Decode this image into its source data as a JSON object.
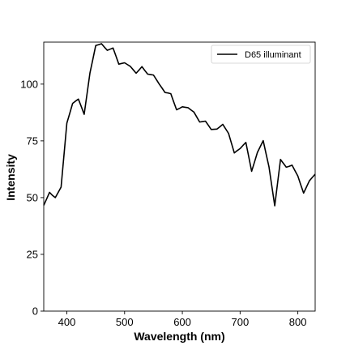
{
  "chart_data": {
    "type": "line",
    "title": "",
    "xlabel": "Wavelength (nm)",
    "ylabel": "Intensity",
    "xlim": [
      360,
      830
    ],
    "ylim": [
      0,
      118.5
    ],
    "xticks": [
      400,
      500,
      600,
      700,
      800
    ],
    "yticks": [
      0,
      25,
      50,
      75,
      100
    ],
    "grid": false,
    "legend_position": "top-right",
    "series": [
      {
        "name": "D65 illuminant",
        "color": "#000000",
        "x": [
          360,
          365,
          370,
          375,
          380,
          385,
          390,
          395,
          400,
          405,
          410,
          415,
          420,
          425,
          430,
          435,
          440,
          445,
          450,
          455,
          460,
          465,
          470,
          475,
          480,
          485,
          490,
          495,
          500,
          505,
          510,
          515,
          520,
          525,
          530,
          535,
          540,
          545,
          550,
          555,
          560,
          565,
          570,
          575,
          580,
          585,
          590,
          595,
          600,
          605,
          610,
          615,
          620,
          625,
          630,
          635,
          640,
          645,
          650,
          655,
          660,
          665,
          670,
          675,
          680,
          685,
          690,
          695,
          700,
          705,
          710,
          715,
          720,
          725,
          730,
          735,
          740,
          745,
          750,
          755,
          760,
          765,
          770,
          775,
          780,
          785,
          790,
          795,
          800,
          805,
          810,
          815,
          820,
          825,
          830
        ],
        "y": [
          46.6,
          49.4,
          52.3,
          51.0,
          50.0,
          52.3,
          54.6,
          68.7,
          82.8,
          87.1,
          91.5,
          92.5,
          93.4,
          90.1,
          86.7,
          95.8,
          104.9,
          110.9,
          117.0,
          117.4,
          117.8,
          116.3,
          114.9,
          115.4,
          115.9,
          112.4,
          108.8,
          109.1,
          109.4,
          108.6,
          107.8,
          106.3,
          104.8,
          106.2,
          107.7,
          106.0,
          104.4,
          104.2,
          104.0,
          102.0,
          100.0,
          98.2,
          96.3,
          96.1,
          95.8,
          92.2,
          88.7,
          89.3,
          90.0,
          89.8,
          89.6,
          88.6,
          87.7,
          85.5,
          83.3,
          83.5,
          83.7,
          81.9,
          80.0,
          80.1,
          80.2,
          81.2,
          82.3,
          80.3,
          78.3,
          74.0,
          69.7,
          70.7,
          71.6,
          73.0,
          74.3,
          68.0,
          61.6,
          65.7,
          69.9,
          72.5,
          75.1,
          69.3,
          63.6,
          55.0,
          46.4,
          56.6,
          66.8,
          65.1,
          63.4,
          63.8,
          64.3,
          61.9,
          59.5,
          55.7,
          52.0,
          54.7,
          57.4,
          58.9,
          60.3
        ]
      }
    ]
  }
}
